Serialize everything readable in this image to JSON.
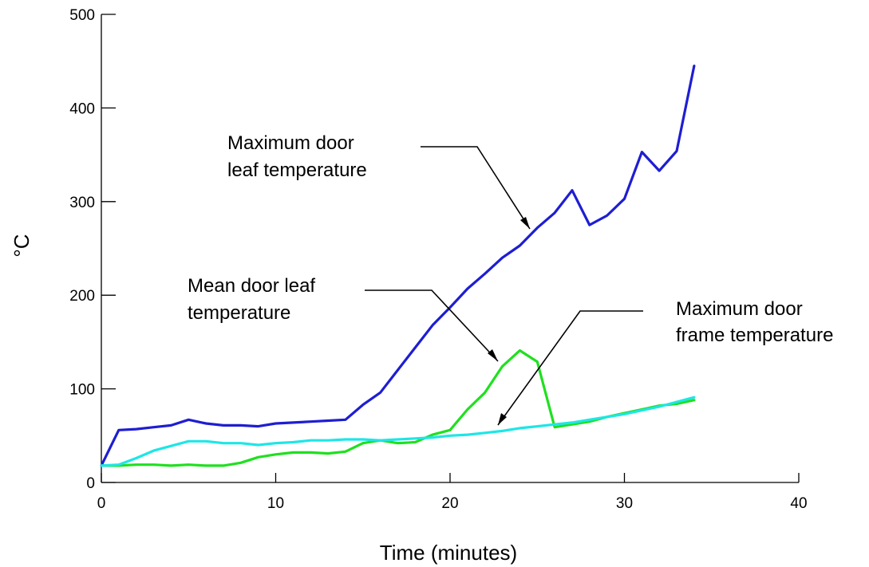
{
  "chart_data": {
    "type": "line",
    "xlabel": "Time (minutes)",
    "ylabel": "°C",
    "xlim": [
      0,
      40
    ],
    "ylim": [
      0,
      500
    ],
    "xticks": [
      0,
      10,
      20,
      30,
      40
    ],
    "yticks": [
      0,
      100,
      200,
      300,
      400,
      500
    ],
    "grid": false,
    "series": [
      {
        "color": "#1e1ed2",
        "x": [
          0,
          1,
          2,
          3,
          4,
          5,
          6,
          7,
          8,
          9,
          10,
          11,
          12,
          13,
          14,
          15,
          16,
          17,
          18,
          19,
          20,
          21,
          22,
          23,
          24,
          25,
          26,
          27,
          28,
          29,
          30,
          31,
          32,
          33,
          34
        ],
        "y": [
          18,
          56,
          57,
          59,
          61,
          67,
          63,
          61,
          61,
          60,
          63,
          64,
          65,
          66,
          67,
          83,
          96,
          120,
          144,
          168,
          187,
          207,
          223,
          240,
          253,
          272,
          288,
          312,
          275,
          285,
          303,
          353,
          333,
          354,
          445
        ]
      },
      {
        "color": "#1fe01f",
        "x": [
          0,
          1,
          2,
          3,
          4,
          5,
          6,
          7,
          8,
          9,
          10,
          11,
          12,
          13,
          14,
          15,
          16,
          17,
          18,
          19,
          20,
          21,
          22,
          23,
          24,
          25,
          26,
          27,
          28,
          29,
          30,
          31,
          32,
          33,
          34
        ],
        "y": [
          18,
          18,
          19,
          19,
          18,
          19,
          18,
          18,
          21,
          27,
          30,
          32,
          32,
          31,
          33,
          42,
          45,
          42,
          43,
          51,
          56,
          78,
          96,
          124,
          141,
          129,
          59,
          62,
          65,
          70,
          74,
          78,
          82,
          84,
          88
        ]
      },
      {
        "color": "#1ee6e6",
        "x": [
          0,
          1,
          2,
          3,
          4,
          5,
          6,
          7,
          8,
          9,
          10,
          11,
          12,
          13,
          14,
          15,
          16,
          17,
          18,
          19,
          20,
          21,
          22,
          23,
          24,
          25,
          26,
          27,
          28,
          29,
          30,
          31,
          32,
          33,
          34
        ],
        "y": [
          18,
          19,
          26,
          34,
          39,
          44,
          44,
          42,
          42,
          40,
          42,
          43,
          45,
          45,
          46,
          46,
          45,
          46,
          47,
          48,
          50,
          51,
          53,
          55,
          58,
          60,
          62,
          64,
          67,
          70,
          73,
          77,
          81,
          86,
          91
        ]
      }
    ],
    "annotations": [
      {
        "lines": [
          "Maximum door",
          "leaf temperature"
        ]
      },
      {
        "lines": [
          "Mean door leaf",
          "temperature"
        ]
      },
      {
        "lines": [
          "Maximum door",
          "frame temperature"
        ]
      }
    ]
  }
}
